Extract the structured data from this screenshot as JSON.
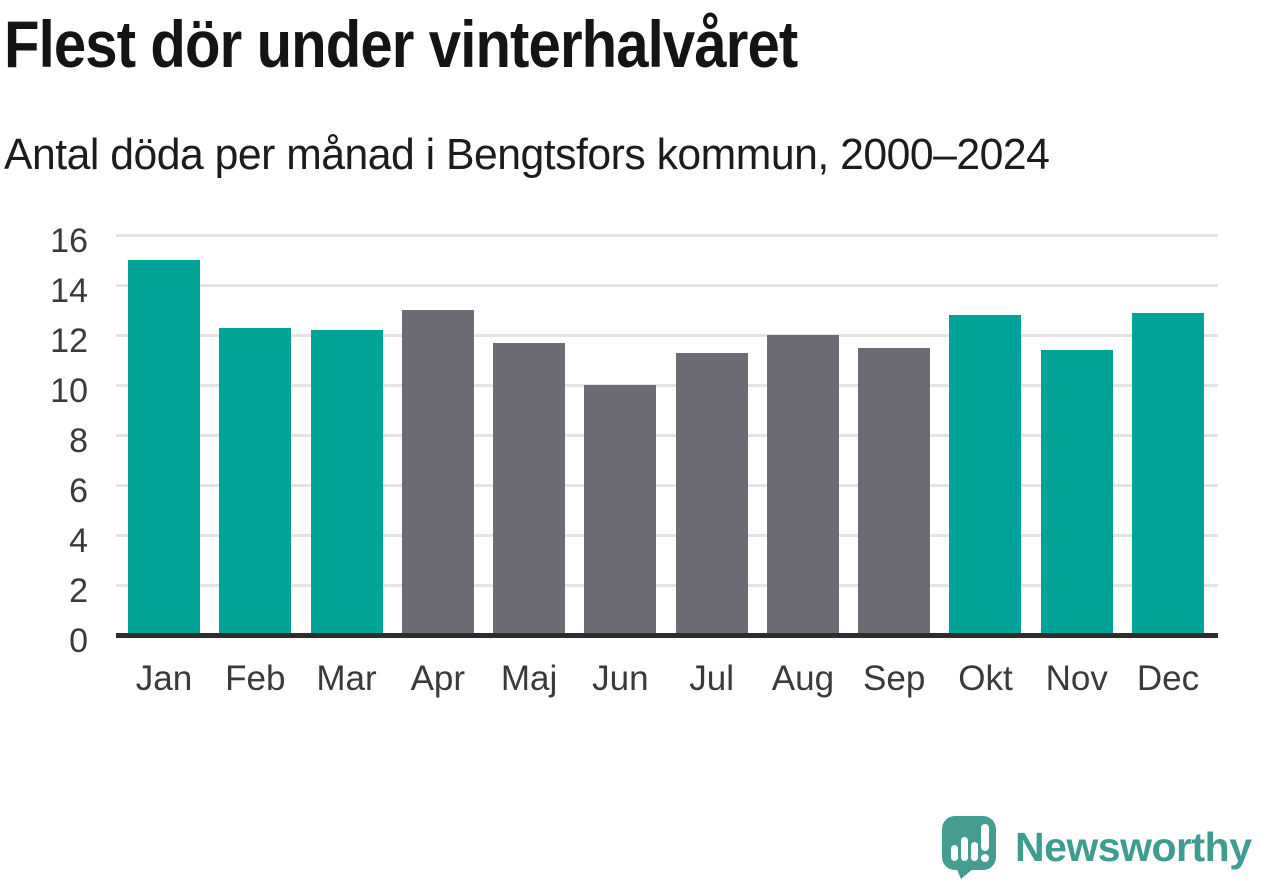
{
  "header": {
    "title": "Flest dör under vinterhalvåret",
    "subtitle": "Antal döda per månad i Bengtsfors kommun, 2000–2024"
  },
  "branding": {
    "name": "Newsworthy",
    "logo_color": "#459c90",
    "wordmark_color": "#3e9c91"
  },
  "chart_data": {
    "type": "bar",
    "title": "Flest dör under vinterhalvåret",
    "subtitle": "Antal döda per månad i Bengtsfors kommun, 2000–2024",
    "categories": [
      "Jan",
      "Feb",
      "Mar",
      "Apr",
      "Maj",
      "Jun",
      "Jul",
      "Aug",
      "Sep",
      "Okt",
      "Nov",
      "Dec"
    ],
    "values": [
      15.0,
      12.3,
      12.2,
      13.0,
      11.7,
      10.0,
      11.3,
      12.0,
      11.5,
      12.8,
      11.4,
      12.9
    ],
    "highlighted": [
      true,
      true,
      true,
      false,
      false,
      false,
      false,
      false,
      false,
      true,
      true,
      true
    ],
    "xlabel": "",
    "ylabel": "",
    "ylim": [
      0,
      16
    ],
    "yticks": [
      0,
      2,
      4,
      6,
      8,
      10,
      12,
      14,
      16
    ],
    "grid": true,
    "legend": "none",
    "colors": {
      "highlight": "#00a398",
      "default": "#6d6c75",
      "gridline": "#e4e4e4",
      "axis": "#2d2d2d",
      "tick_text": "#3a3a3a"
    }
  }
}
